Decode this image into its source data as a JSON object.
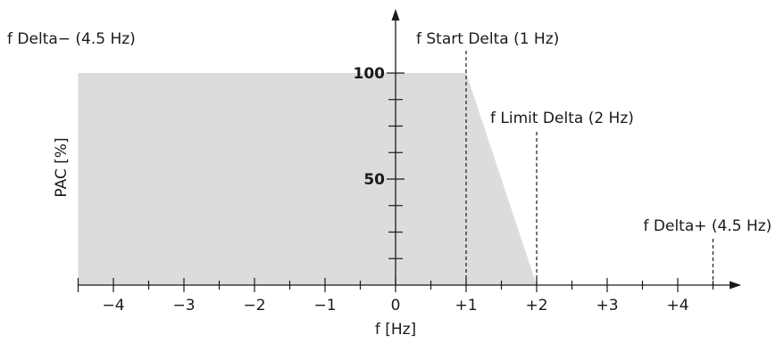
{
  "chart_data": {
    "type": "area",
    "title": "",
    "xlabel": "f [Hz]",
    "ylabel": "PAC [%]",
    "xlim": [
      -4.5,
      4.9
    ],
    "ylim": [
      0,
      100
    ],
    "x_ticks": [
      -4,
      -3,
      -2,
      -1,
      0,
      1,
      2,
      3,
      4
    ],
    "x_tick_labels": [
      "−4",
      "−3",
      "−2",
      "−1",
      "0",
      "+1",
      "+2",
      "+3",
      "+4"
    ],
    "y_ticks": [
      50,
      100
    ],
    "y_tick_labels": [
      "50",
      "100"
    ],
    "series": [
      {
        "x": [
          -4.5,
          1,
          2
        ],
        "y": [
          100,
          100,
          0
        ]
      }
    ],
    "reference_lines": [
      {
        "x": 1,
        "label": "f Start Delta (1 Hz)"
      },
      {
        "x": 2,
        "label": "f Limit Delta (2 Hz)"
      },
      {
        "x": 4.5,
        "label": "f Delta+ (4.5 Hz)"
      }
    ],
    "annotations": [
      {
        "x": -4.5,
        "label": "f Delta− (4.5 Hz)"
      }
    ],
    "colors": {
      "fill": "#dcdcdd",
      "axis": "#1a1a1a"
    },
    "grid": false
  }
}
